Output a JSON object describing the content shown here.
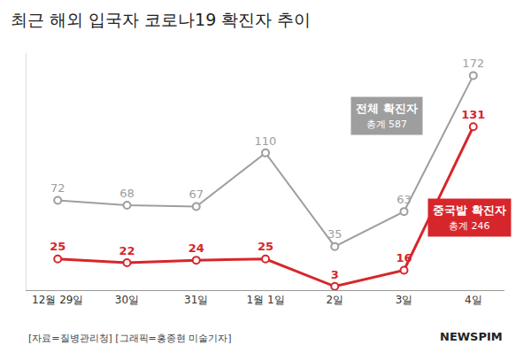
{
  "chart_data": {
    "type": "line",
    "title": "최근 해외 입국자 코로나19 확진자 추이",
    "categories": [
      "12월 29일",
      "30일",
      "31일",
      "1월 1일",
      "2일",
      "3일",
      "4일"
    ],
    "series": [
      {
        "name": "전체 확진자",
        "note": "총계 587",
        "color": "#9e9e9e",
        "marker": "circle",
        "line_style": "solid",
        "values": [
          72,
          68,
          67,
          110,
          35,
          63,
          172
        ]
      },
      {
        "name": "중국발 확진자",
        "note": "총계 246",
        "color": "#d7262b",
        "marker": "circle",
        "line_style": "solid",
        "values": [
          25,
          22,
          24,
          25,
          3,
          16,
          131
        ]
      }
    ],
    "ylim": [
      0,
      190
    ],
    "data_labels": true,
    "tick_labels": "x",
    "grid": false,
    "source": "[자료=질병관리청] [그래픽=홍종현 미술기자]",
    "brand": "NEWSPIM"
  }
}
